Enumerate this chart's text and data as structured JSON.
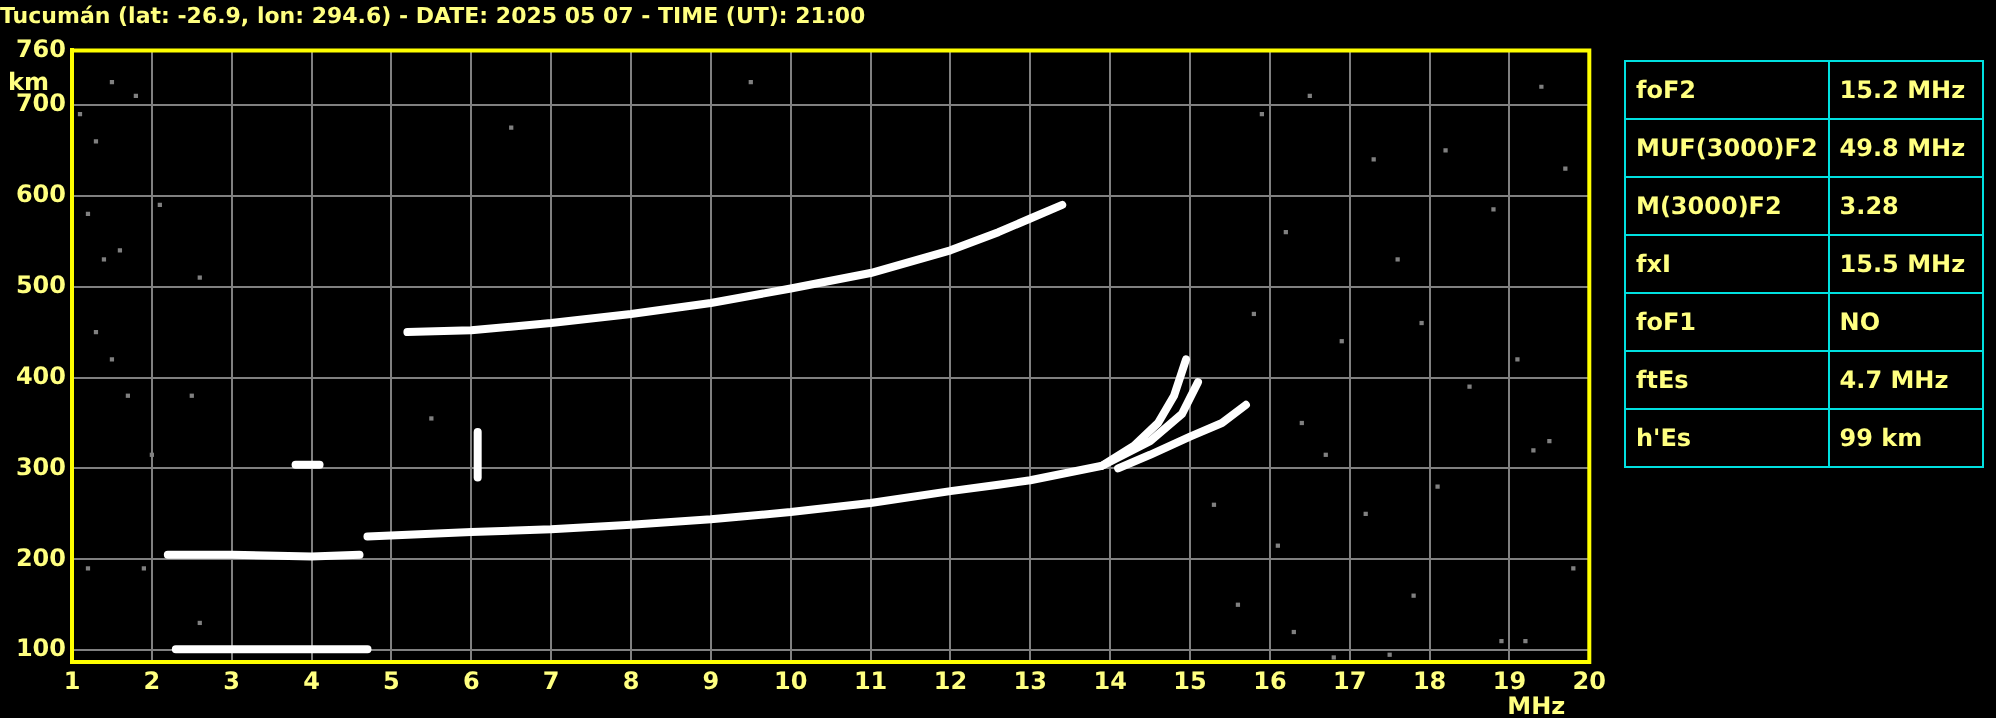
{
  "chart_data": [
    {
      "type": "line",
      "title": "Tucumán (lat: -26.9, lon: 294.6) - DATE: 2025 05 07 - TIME (UT): 21:00",
      "xlabel": "MHz",
      "ylabel": "km",
      "xlim": [
        1,
        20
      ],
      "ylim": [
        87,
        760
      ],
      "xticks": [
        1,
        2,
        3,
        4,
        5,
        6,
        7,
        8,
        9,
        10,
        11,
        12,
        13,
        14,
        15,
        16,
        17,
        18,
        19,
        20
      ],
      "yticks": [
        100,
        200,
        300,
        400,
        500,
        600,
        700,
        760
      ],
      "grid": true,
      "legend": false,
      "marker": "none",
      "line_style": "solid",
      "series": [
        {
          "color": "#ffffff",
          "x": [
            2.3,
            3,
            4,
            4.7
          ],
          "values": [
            101,
            101,
            101,
            101
          ]
        },
        {
          "color": "#ffffff",
          "x": [
            2.2,
            3,
            4,
            4.6
          ],
          "values": [
            205,
            205,
            203,
            205
          ]
        },
        {
          "color": "#ffffff",
          "x": [
            4.7,
            6,
            7,
            8,
            9,
            10,
            11,
            12,
            12.6,
            13,
            13.9,
            14.3,
            14.6,
            14.8,
            14.95
          ],
          "values": [
            225,
            230,
            233,
            238,
            244,
            252,
            262,
            275,
            282,
            287,
            303,
            325,
            350,
            380,
            420
          ]
        },
        {
          "color": "#ffffff",
          "x": [
            13.9,
            14.5,
            14.9,
            15.1
          ],
          "values": [
            303,
            330,
            360,
            395
          ]
        },
        {
          "color": "#ffffff",
          "x": [
            14.1,
            14.5,
            15,
            15.4,
            15.7
          ],
          "values": [
            300,
            315,
            335,
            350,
            370
          ]
        },
        {
          "color": "#ffffff",
          "x": [
            5.2,
            6,
            7,
            8,
            9,
            10,
            11,
            12,
            12.6,
            13,
            13.4
          ],
          "values": [
            450,
            452,
            460,
            470,
            482,
            498,
            515,
            540,
            560,
            575,
            590
          ]
        },
        {
          "color": "#ffffff",
          "x": [
            3.8,
            4.1
          ],
          "values": [
            304,
            304
          ]
        },
        {
          "color": "#ffffff",
          "x": [
            6.08,
            6.08
          ],
          "values": [
            290,
            340
          ]
        },
        {
          "type": "scatter",
          "marker": "square",
          "color": "#808080",
          "x": [
            1.1,
            1.3,
            1.5,
            1.8,
            1.2,
            1.4,
            1.6,
            2.1,
            2.6,
            1.3,
            1.7,
            2.0,
            1.5,
            2.5,
            1.9,
            1.2,
            2.6,
            5.5,
            6.5,
            9.5,
            15.9,
            16.5,
            17.3,
            18.2,
            19.4,
            16.2,
            17.6,
            18.8,
            19.7,
            15.8,
            16.9,
            17.9,
            19.1,
            16.4,
            18.5,
            19.5,
            15.3,
            16.7,
            17.2,
            18.1,
            19.3,
            16.1,
            17.8,
            19.8,
            15.6,
            16.3,
            18.9,
            17.5,
            19.2,
            16.8
          ],
          "values": [
            690,
            660,
            725,
            710,
            580,
            530,
            540,
            590,
            510,
            450,
            380,
            315,
            420,
            380,
            190,
            190,
            130,
            355,
            675,
            725,
            690,
            710,
            640,
            650,
            720,
            560,
            530,
            585,
            630,
            470,
            440,
            460,
            420,
            350,
            390,
            330,
            260,
            315,
            250,
            280,
            320,
            215,
            160,
            190,
            150,
            120,
            110,
            95,
            110,
            92
          ]
        }
      ]
    },
    {
      "type": "other",
      "annotations": [
        "foF2",
        "15.2 MHz",
        "MUF(3000)F2",
        "49.8 MHz",
        "M(3000)F2",
        "3.28",
        "fxI",
        "15.5 MHz",
        "foF1",
        "NO",
        "ftEs",
        "4.7 MHz",
        "h'Es",
        "99 km"
      ]
    }
  ]
}
